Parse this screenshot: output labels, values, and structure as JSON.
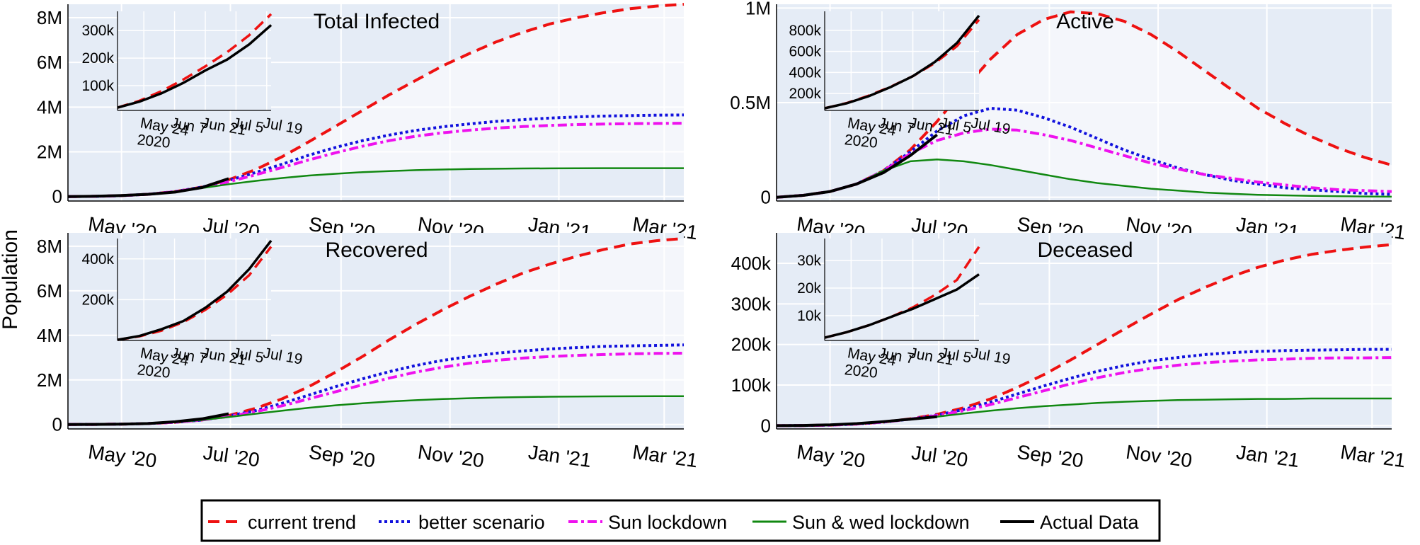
{
  "ylabel": "Population",
  "legend": {
    "position": "bottom-center",
    "entries": [
      {
        "label": "current trend",
        "color": "#ee1111",
        "dash": "dashed"
      },
      {
        "label": "better scenario",
        "color": "#1111dd",
        "dash": "dotted"
      },
      {
        "label": "Sun lockdown",
        "color": "#ee11ee",
        "dash": "dashdot"
      },
      {
        "label": "Sun & wed lockdown",
        "color": "#118811",
        "dash": "solid"
      },
      {
        "label": "Actual Data",
        "color": "#000000",
        "dash": "solid"
      }
    ]
  },
  "x_ticks": [
    "May '20",
    "Jul '20",
    "Sep '20",
    "Nov '20",
    "Jan '21",
    "Mar '21"
  ],
  "inset_x_ticks": [
    "May 24",
    "Jun 7",
    "Jun 21",
    "Jul 5",
    "Jul 19"
  ],
  "inset_x_year": "2020",
  "chart_data": [
    {
      "type": "line",
      "title": "Total Infected",
      "x_unit": "days since Apr 1 2020",
      "x": [
        0,
        15,
        30,
        45,
        60,
        75,
        90,
        105,
        120,
        135,
        150,
        165,
        180,
        195,
        210,
        225,
        240,
        255,
        270,
        285,
        300,
        315,
        330,
        345
      ],
      "yticks": [
        "0",
        "2M",
        "4M",
        "6M",
        "8M"
      ],
      "ylim": [
        -0.2,
        8.6
      ],
      "y_unit": "millions",
      "series": [
        {
          "name": "current trend",
          "values": [
            0,
            0.01,
            0.04,
            0.1,
            0.22,
            0.42,
            0.75,
            1.2,
            1.78,
            2.45,
            3.15,
            3.85,
            4.55,
            5.2,
            5.85,
            6.4,
            6.92,
            7.35,
            7.72,
            8.0,
            8.22,
            8.4,
            8.52,
            8.6
          ]
        },
        {
          "name": "better scenario",
          "values": [
            0,
            0.01,
            0.04,
            0.1,
            0.22,
            0.42,
            0.72,
            1.07,
            1.45,
            1.85,
            2.2,
            2.5,
            2.75,
            2.96,
            3.12,
            3.25,
            3.36,
            3.44,
            3.51,
            3.56,
            3.6,
            3.62,
            3.64,
            3.65
          ]
        },
        {
          "name": "Sun lockdown",
          "values": [
            0,
            0.01,
            0.04,
            0.1,
            0.22,
            0.4,
            0.66,
            0.97,
            1.3,
            1.64,
            1.96,
            2.25,
            2.5,
            2.7,
            2.85,
            2.97,
            3.06,
            3.13,
            3.18,
            3.22,
            3.24,
            3.26,
            3.27,
            3.28
          ]
        },
        {
          "name": "Sun & wed lockdown",
          "values": [
            0,
            0.01,
            0.04,
            0.1,
            0.22,
            0.38,
            0.55,
            0.7,
            0.83,
            0.94,
            1.02,
            1.09,
            1.14,
            1.18,
            1.21,
            1.23,
            1.245,
            1.255,
            1.26,
            1.265,
            1.268,
            1.27,
            1.27,
            1.27
          ]
        },
        {
          "name": "Actual Data",
          "values": [
            0,
            0.012,
            0.045,
            0.1,
            0.2,
            0.4,
            0.8
          ],
          "x": [
            0,
            15,
            30,
            45,
            60,
            75,
            90
          ]
        }
      ],
      "inset": {
        "yticks": [
          "100k",
          "200k",
          "300k"
        ],
        "ylim": [
          10,
          370
        ],
        "y_unit": "thousands",
        "x_unit": "days since May 12 2020",
        "x": [
          0,
          10,
          20,
          30,
          40,
          50,
          60,
          70
        ],
        "series": [
          {
            "name": "current trend",
            "values": [
              20,
              45,
              80,
              122,
              170,
              222,
              283,
              360
            ]
          },
          {
            "name": "Actual Data",
            "values": [
              20,
              42,
              72,
              110,
              155,
              195,
              250,
              320
            ]
          }
        ]
      }
    },
    {
      "type": "line",
      "title": "Active",
      "x_unit": "days since Apr 1 2020",
      "x": [
        0,
        15,
        30,
        45,
        60,
        75,
        90,
        105,
        120,
        135,
        150,
        165,
        180,
        195,
        210,
        225,
        240,
        255,
        270,
        285,
        300,
        315,
        330,
        345
      ],
      "yticks": [
        "0",
        "0.5M",
        "1M"
      ],
      "ylim": [
        -0.02,
        1.02
      ],
      "y_unit": "millions",
      "series": [
        {
          "name": "current trend",
          "values": [
            0,
            0.01,
            0.03,
            0.07,
            0.14,
            0.25,
            0.4,
            0.57,
            0.73,
            0.86,
            0.94,
            0.98,
            0.97,
            0.93,
            0.86,
            0.77,
            0.67,
            0.57,
            0.47,
            0.39,
            0.32,
            0.26,
            0.21,
            0.17
          ]
        },
        {
          "name": "better scenario",
          "values": [
            0,
            0.01,
            0.03,
            0.07,
            0.14,
            0.24,
            0.35,
            0.43,
            0.47,
            0.46,
            0.42,
            0.37,
            0.31,
            0.25,
            0.2,
            0.155,
            0.12,
            0.09,
            0.07,
            0.05,
            0.04,
            0.03,
            0.02,
            0.015
          ]
        },
        {
          "name": "Sun lockdown",
          "values": [
            0,
            0.01,
            0.03,
            0.07,
            0.14,
            0.23,
            0.3,
            0.34,
            0.36,
            0.355,
            0.33,
            0.3,
            0.26,
            0.22,
            0.18,
            0.15,
            0.12,
            0.1,
            0.08,
            0.065,
            0.05,
            0.04,
            0.035,
            0.03
          ]
        },
        {
          "name": "Sun & wed lockdown",
          "values": [
            0,
            0.01,
            0.03,
            0.07,
            0.14,
            0.19,
            0.2,
            0.19,
            0.17,
            0.145,
            0.12,
            0.095,
            0.075,
            0.06,
            0.045,
            0.035,
            0.025,
            0.018,
            0.013,
            0.01,
            0.007,
            0.005,
            0.004,
            0.003
          ]
        },
        {
          "name": "Actual Data",
          "values": [
            0,
            0.01,
            0.03,
            0.07,
            0.13,
            0.22,
            0.33
          ],
          "x": [
            0,
            15,
            30,
            45,
            60,
            75,
            90
          ]
        }
      ],
      "inset": {
        "yticks": [
          "200k",
          "400k",
          "600k",
          "800k"
        ],
        "ylim": [
          40,
          980
        ],
        "y_unit": "thousands",
        "x_unit": "days since May 12 2020",
        "x": [
          0,
          10,
          20,
          30,
          40,
          50,
          60,
          70
        ],
        "series": [
          {
            "name": "current trend",
            "values": [
              60,
              110,
              180,
              265,
              365,
              490,
              650,
              900
            ]
          },
          {
            "name": "Actual Data",
            "values": [
              60,
              108,
              175,
              262,
              365,
              500,
              680,
              940
            ]
          }
        ]
      }
    },
    {
      "type": "line",
      "title": "Recovered",
      "x_unit": "days since Apr 1 2020",
      "x": [
        0,
        15,
        30,
        45,
        60,
        75,
        90,
        105,
        120,
        135,
        150,
        165,
        180,
        195,
        210,
        225,
        240,
        255,
        270,
        285,
        300,
        315,
        330,
        345
      ],
      "yticks": [
        "0",
        "2M",
        "4M",
        "6M",
        "8M"
      ],
      "ylim": [
        -0.2,
        8.6
      ],
      "y_unit": "millions",
      "series": [
        {
          "name": "current trend",
          "values": [
            0,
            0.003,
            0.015,
            0.04,
            0.1,
            0.2,
            0.4,
            0.72,
            1.15,
            1.7,
            2.35,
            3.05,
            3.8,
            4.5,
            5.15,
            5.75,
            6.3,
            6.8,
            7.2,
            7.55,
            7.85,
            8.1,
            8.25,
            8.35
          ]
        },
        {
          "name": "better scenario",
          "values": [
            0,
            0.003,
            0.015,
            0.04,
            0.1,
            0.2,
            0.38,
            0.62,
            0.95,
            1.32,
            1.7,
            2.05,
            2.37,
            2.65,
            2.88,
            3.05,
            3.2,
            3.3,
            3.39,
            3.45,
            3.5,
            3.53,
            3.55,
            3.57
          ]
        },
        {
          "name": "Sun lockdown",
          "values": [
            0,
            0.003,
            0.015,
            0.04,
            0.1,
            0.2,
            0.36,
            0.57,
            0.84,
            1.15,
            1.47,
            1.78,
            2.08,
            2.35,
            2.57,
            2.75,
            2.88,
            2.98,
            3.05,
            3.1,
            3.14,
            3.17,
            3.19,
            3.2
          ]
        },
        {
          "name": "Sun & wed lockdown",
          "values": [
            0,
            0.003,
            0.015,
            0.04,
            0.1,
            0.2,
            0.33,
            0.48,
            0.62,
            0.75,
            0.86,
            0.95,
            1.03,
            1.09,
            1.14,
            1.18,
            1.21,
            1.23,
            1.245,
            1.255,
            1.262,
            1.266,
            1.268,
            1.27
          ]
        },
        {
          "name": "Actual Data",
          "values": [
            0,
            0.003,
            0.015,
            0.04,
            0.12,
            0.25,
            0.48
          ],
          "x": [
            0,
            15,
            30,
            45,
            60,
            75,
            90
          ]
        }
      ],
      "inset": {
        "yticks": [
          "200k",
          "400k"
        ],
        "ylim": [
          0,
          500
        ],
        "y_unit": "thousands",
        "x_unit": "days since May 12 2020",
        "x": [
          0,
          10,
          20,
          30,
          40,
          50,
          60,
          70
        ],
        "series": [
          {
            "name": "current trend",
            "values": [
              3,
              20,
              48,
              90,
              150,
              225,
              320,
              460
            ]
          },
          {
            "name": "Actual Data",
            "values": [
              3,
              22,
              55,
              95,
              160,
              240,
              350,
              490
            ]
          }
        ]
      }
    },
    {
      "type": "line",
      "title": "Deceased",
      "x_unit": "days since Apr 1 2020",
      "x": [
        0,
        15,
        30,
        45,
        60,
        75,
        90,
        105,
        120,
        135,
        150,
        165,
        180,
        195,
        210,
        225,
        240,
        255,
        270,
        285,
        300,
        315,
        330,
        345
      ],
      "yticks": [
        "0",
        "100k",
        "200k",
        "300k",
        "400k"
      ],
      "ylim": [
        -8,
        475
      ],
      "y_unit": "thousands",
      "series": [
        {
          "name": "current trend",
          "values": [
            0,
            0.4,
            1.5,
            4,
            9,
            17,
            28,
            44,
            66,
            94,
            126,
            162,
            200,
            238,
            275,
            310,
            340,
            367,
            390,
            408,
            422,
            432,
            440,
            446
          ]
        },
        {
          "name": "better scenario",
          "values": [
            0,
            0.4,
            1.5,
            4,
            9,
            16,
            26,
            40,
            58,
            78,
            98,
            117,
            134,
            148,
            160,
            168,
            175,
            180,
            183,
            185,
            186,
            187,
            188,
            188
          ]
        },
        {
          "name": "Sun lockdown",
          "values": [
            0,
            0.4,
            1.5,
            4,
            9,
            16,
            25,
            37,
            52,
            69,
            86,
            103,
            118,
            131,
            141,
            149,
            155,
            159,
            162,
            164,
            166,
            167,
            167,
            168
          ]
        },
        {
          "name": "Sun & wed lockdown",
          "values": [
            0,
            0.4,
            1.5,
            4,
            9,
            15,
            22,
            30,
            37,
            43,
            48,
            52,
            56,
            59,
            61,
            63,
            64,
            65,
            66,
            66,
            67,
            67,
            67,
            67
          ]
        },
        {
          "name": "Actual Data",
          "values": [
            0,
            0.5,
            2,
            5,
            10,
            16,
            22
          ],
          "x": [
            0,
            15,
            30,
            45,
            60,
            75,
            90
          ]
        }
      ],
      "inset": {
        "yticks": [
          "10k",
          "20k",
          "30k"
        ],
        "ylim": [
          1,
          38
        ],
        "y_unit": "thousands",
        "x_unit": "days since May 12 2020",
        "x": [
          0,
          10,
          20,
          30,
          40,
          50,
          60,
          70
        ],
        "series": [
          {
            "name": "current trend",
            "values": [
              2,
              4,
              6.5,
              9.5,
              13,
              17.5,
              23,
              35
            ]
          },
          {
            "name": "Actual Data",
            "values": [
              2,
              4,
              6.5,
              9.5,
              12.5,
              16,
              19.5,
              25
            ]
          }
        ]
      }
    }
  ]
}
